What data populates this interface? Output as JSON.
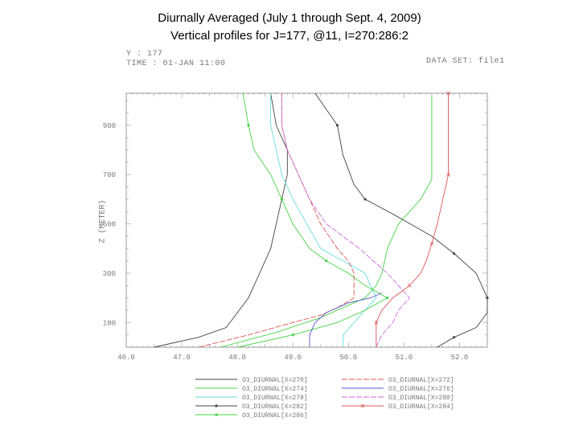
{
  "page": {
    "title_line1": "Diurnally Averaged (July 1 through Sept. 4, 2009)",
    "title_line2": "Vertical profiles for J=177, @11, I=270:286:2"
  },
  "plot_header": {
    "y_label": "Y : 177",
    "time_label": "TIME : 01-JAN 11:00",
    "dataset_label": "DATA SET: file1"
  },
  "chart_data": {
    "type": "line",
    "title": "",
    "xlabel": "",
    "ylabel": "Z (METER)",
    "xlim": [
      46.0,
      52.5
    ],
    "ylim": [
      1,
      11.3
    ],
    "x_ticks": [
      46.0,
      47.0,
      48.0,
      49.0,
      50.0,
      51.0,
      52.0
    ],
    "x_tick_labels": [
      "46.0",
      "47.0",
      "48.0",
      "49.0",
      "50.0",
      "51.0",
      "52.0"
    ],
    "y_ticks": [
      2,
      4,
      6,
      8,
      10
    ],
    "y_tick_labels": [
      "100",
      "300",
      "500",
      "700",
      "900"
    ],
    "grid": false,
    "legend_position": "bottom",
    "series": [
      {
        "name": "O3_DIURNAL[X=270]",
        "color": "#444444",
        "marker": "none",
        "dash": false,
        "points": [
          [
            46.5,
            1.0
          ],
          [
            47.3,
            1.4
          ],
          [
            47.8,
            1.8
          ],
          [
            48.0,
            2.4
          ],
          [
            48.2,
            3.0
          ],
          [
            48.4,
            4.0
          ],
          [
            48.6,
            5.0
          ],
          [
            48.7,
            6.0
          ],
          [
            48.8,
            7.0
          ],
          [
            48.9,
            8.0
          ],
          [
            48.9,
            9.0
          ],
          [
            48.7,
            10.0
          ],
          [
            48.6,
            11.3
          ]
        ]
      },
      {
        "name": "O3_DIURNAL[X=274]",
        "color": "#44d444",
        "marker": "none",
        "dash": false,
        "points": [
          [
            47.7,
            1.0
          ],
          [
            48.7,
            1.6
          ],
          [
            49.5,
            2.2
          ],
          [
            50.0,
            2.7
          ],
          [
            50.3,
            3.0
          ],
          [
            50.5,
            3.5
          ],
          [
            50.6,
            4.0
          ],
          [
            50.7,
            5.0
          ],
          [
            50.9,
            6.0
          ],
          [
            51.3,
            7.0
          ],
          [
            51.5,
            7.8
          ],
          [
            51.5,
            9.0
          ],
          [
            51.5,
            11.2
          ]
        ]
      },
      {
        "name": "O3_DIURNAL[X=278]",
        "color": "#66dddd",
        "marker": "none",
        "dash": false,
        "points": [
          [
            49.9,
            1.0
          ],
          [
            49.9,
            1.5
          ],
          [
            50.1,
            2.0
          ],
          [
            50.3,
            2.5
          ],
          [
            50.5,
            3.0
          ],
          [
            50.4,
            3.5
          ],
          [
            50.3,
            4.0
          ],
          [
            49.9,
            4.5
          ],
          [
            49.5,
            5.0
          ],
          [
            49.3,
            5.8
          ],
          [
            49.0,
            7.0
          ],
          [
            48.8,
            8.0
          ],
          [
            48.7,
            9.0
          ],
          [
            48.6,
            10.0
          ],
          [
            48.6,
            11.3
          ]
        ]
      },
      {
        "name": "O3_DIURNAL[X=282]",
        "color": "#444444",
        "marker": "dot",
        "dash": false,
        "points": [
          [
            51.6,
            1.0
          ],
          [
            51.9,
            1.4
          ],
          [
            52.3,
            1.8
          ],
          [
            52.5,
            2.4
          ],
          [
            52.5,
            3.0
          ],
          [
            52.4,
            3.5
          ],
          [
            52.3,
            4.0
          ],
          [
            51.9,
            4.8
          ],
          [
            51.5,
            5.5
          ],
          [
            50.8,
            6.4
          ],
          [
            50.3,
            7.0
          ],
          [
            50.1,
            7.6
          ],
          [
            49.9,
            8.8
          ],
          [
            49.8,
            10.0
          ],
          [
            49.4,
            11.3
          ]
        ]
      },
      {
        "name": "O3_DIURNAL[X=286]",
        "color": "#44d444",
        "marker": "dot",
        "dash": false,
        "points": [
          [
            48.0,
            1.0
          ],
          [
            49.0,
            1.5
          ],
          [
            49.8,
            2.0
          ],
          [
            50.3,
            2.5
          ],
          [
            50.7,
            3.0
          ],
          [
            50.3,
            3.5
          ],
          [
            50.0,
            4.0
          ],
          [
            49.6,
            4.5
          ],
          [
            49.3,
            5.0
          ],
          [
            49.0,
            6.0
          ],
          [
            48.8,
            7.0
          ],
          [
            48.6,
            8.0
          ],
          [
            48.3,
            9.0
          ],
          [
            48.2,
            10.0
          ],
          [
            48.1,
            11.3
          ]
        ]
      },
      {
        "name": "O3_DIURNAL[X=272]",
        "color": "#dd5555",
        "marker": "none",
        "dash": true,
        "points": [
          [
            47.3,
            1.0
          ],
          [
            48.2,
            1.5
          ],
          [
            49.0,
            2.0
          ],
          [
            49.5,
            2.3
          ],
          [
            49.8,
            2.6
          ],
          [
            50.1,
            3.0
          ],
          [
            50.1,
            3.5
          ],
          [
            50.1,
            4.0
          ],
          [
            50.0,
            4.5
          ],
          [
            49.8,
            5.0
          ],
          [
            49.5,
            6.0
          ],
          [
            49.3,
            7.0
          ],
          [
            49.1,
            8.0
          ],
          [
            48.9,
            9.0
          ],
          [
            48.8,
            10.0
          ],
          [
            48.8,
            11.3
          ]
        ]
      },
      {
        "name": "O3_DIURNAL[X=276]",
        "color": "#5555cc",
        "marker": "none",
        "dash": false,
        "points": [
          [
            49.3,
            1.0
          ],
          [
            49.3,
            1.5
          ],
          [
            49.4,
            2.0
          ],
          [
            49.6,
            2.4
          ],
          [
            50.0,
            2.8
          ],
          [
            50.4,
            3.0
          ],
          [
            50.6,
            3.2
          ]
        ]
      },
      {
        "name": "O3_DIURNAL[X=280]",
        "color": "#cc66dd",
        "marker": "none",
        "dash": true,
        "points": [
          [
            50.5,
            1.0
          ],
          [
            50.6,
            1.5
          ],
          [
            50.8,
            2.0
          ],
          [
            50.9,
            2.5
          ],
          [
            51.1,
            3.0
          ],
          [
            50.9,
            3.5
          ],
          [
            50.7,
            4.0
          ],
          [
            50.2,
            5.0
          ],
          [
            49.9,
            5.5
          ],
          [
            49.6,
            6.0
          ],
          [
            49.3,
            7.0
          ],
          [
            49.1,
            8.0
          ],
          [
            48.9,
            9.0
          ],
          [
            48.8,
            10.0
          ],
          [
            48.8,
            11.3
          ]
        ]
      },
      {
        "name": "O3_DIURNAL[X=284]",
        "color": "#dd5555",
        "marker": "cross",
        "dash": false,
        "points": [
          [
            50.5,
            1.0
          ],
          [
            50.5,
            2.0
          ],
          [
            50.6,
            2.5
          ],
          [
            50.8,
            3.0
          ],
          [
            51.1,
            3.5
          ],
          [
            51.3,
            4.0
          ],
          [
            51.4,
            4.5
          ],
          [
            51.5,
            5.2
          ],
          [
            51.6,
            6.0
          ],
          [
            51.7,
            7.0
          ],
          [
            51.8,
            8.0
          ],
          [
            51.8,
            9.0
          ],
          [
            51.8,
            10.0
          ],
          [
            51.8,
            11.3
          ]
        ]
      }
    ],
    "legend_order_left": [
      0,
      1,
      2,
      3,
      4
    ],
    "legend_order_right": [
      5,
      6,
      7,
      8
    ]
  }
}
